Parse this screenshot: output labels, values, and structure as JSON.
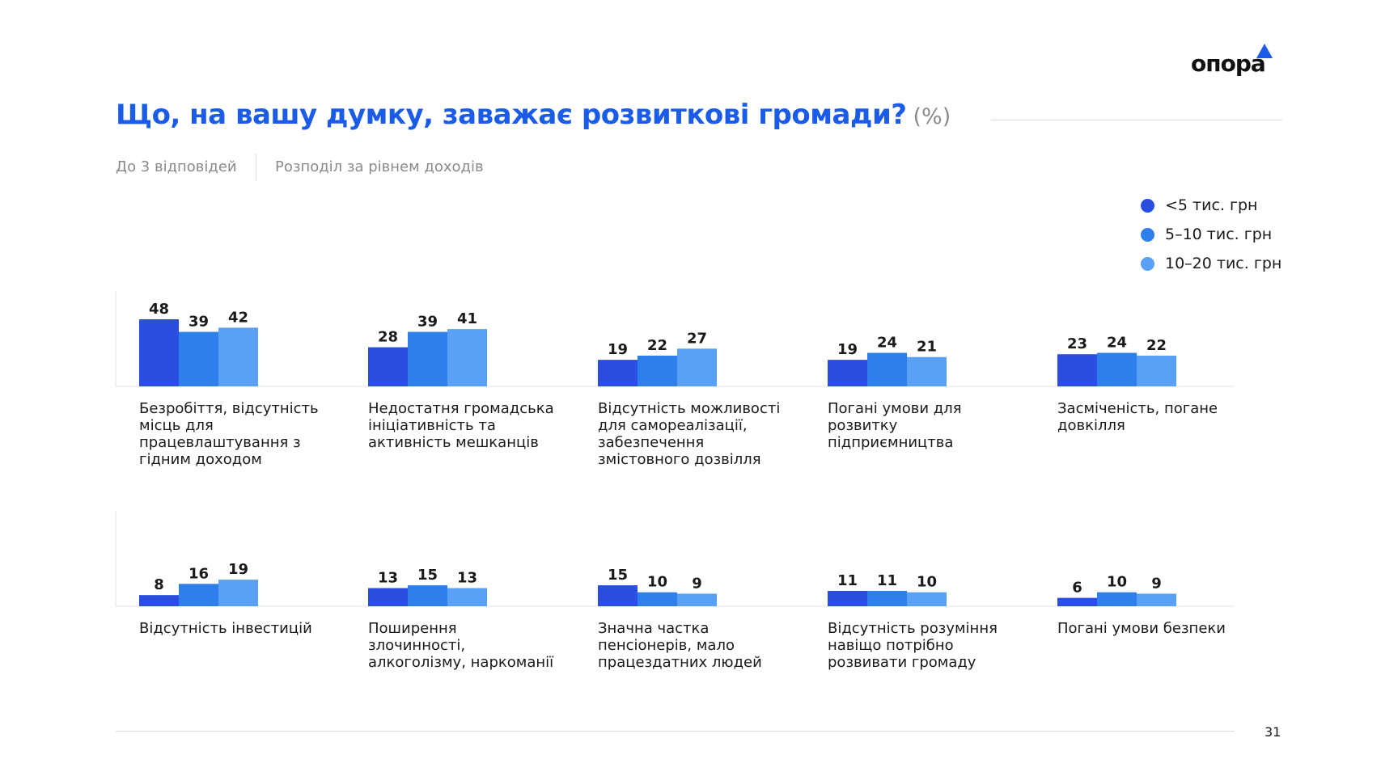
{
  "header": {
    "logo_text": "опора",
    "title": "Що, на вашу думку, заважає розвиткові громади?",
    "unit": "(%)",
    "subtitle_left": "До 3 відповідей",
    "subtitle_right": "Розподіл за рівнем доходів"
  },
  "footer": {
    "page_number": "31"
  },
  "colors": {
    "title": "#1a5ce8",
    "series": [
      "#2a4fe0",
      "#2f7fea",
      "#5aa0f7"
    ]
  },
  "chart_data": {
    "type": "bar",
    "unit": "%",
    "series_names": [
      "<5 тис. грн",
      "5–10 тис. грн",
      "10–20 тис. грн"
    ],
    "legend_placement": "top-right",
    "ylim": [
      0,
      60
    ],
    "categories": [
      "Безробіття, відсутність місць для працевлаштування з гідним доходом",
      "Недостатня громадська ініціативність та активність мешканців",
      "Відсутність можливості для самореалізації, забезпечення змістовного дозвілля",
      "Погані умови для розвитку підприємництва",
      "Засміченість, погане довкілля",
      "Відсутність інвестицій",
      "Поширення злочинності, алкоголізму, наркоманії",
      "Значна частка пенсіонерів, мало працездатних людей",
      "Відсутність розуміння навіщо потрібно розвивати громаду",
      "Погані умови безпеки"
    ],
    "series": [
      {
        "name": "<5 тис. грн",
        "values": [
          48,
          28,
          19,
          19,
          23,
          8,
          13,
          15,
          11,
          6
        ]
      },
      {
        "name": "5–10 тис. грн",
        "values": [
          39,
          39,
          22,
          24,
          24,
          16,
          15,
          10,
          11,
          10
        ]
      },
      {
        "name": "10–20 тис. грн",
        "values": [
          42,
          41,
          27,
          21,
          22,
          19,
          13,
          9,
          10,
          9
        ]
      }
    ]
  }
}
